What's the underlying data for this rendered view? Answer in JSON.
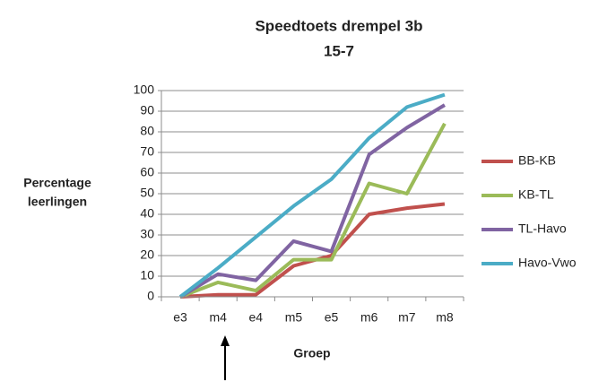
{
  "chart_data": {
    "type": "line",
    "title": "Speedtoets drempel 3b",
    "subtitle": "15-7",
    "ylabel": [
      "Percentage",
      "leerlingen"
    ],
    "xlabel": "Groep",
    "categories": [
      "e3",
      "m4",
      "e4",
      "m5",
      "e5",
      "m6",
      "m7",
      "m8"
    ],
    "series": [
      {
        "name": "BB-KB",
        "color": "#c0504d",
        "values": [
          0,
          1,
          1,
          15,
          20,
          40,
          43,
          45
        ]
      },
      {
        "name": "KB-TL",
        "color": "#9bbb59",
        "values": [
          0,
          7,
          3,
          18,
          18,
          55,
          50,
          84
        ]
      },
      {
        "name": "TL-Havo",
        "color": "#8064a2",
        "values": [
          0,
          11,
          8,
          27,
          22,
          69,
          82,
          93
        ]
      },
      {
        "name": "Havo-Vwo",
        "color": "#4bacc6",
        "values": [
          0,
          14,
          29,
          44,
          57,
          77,
          92,
          98
        ]
      }
    ],
    "ylim": [
      0,
      100
    ],
    "yticks": [
      0,
      10,
      20,
      30,
      40,
      50,
      60,
      70,
      80,
      90,
      100
    ],
    "grid": true,
    "legend": "right"
  }
}
